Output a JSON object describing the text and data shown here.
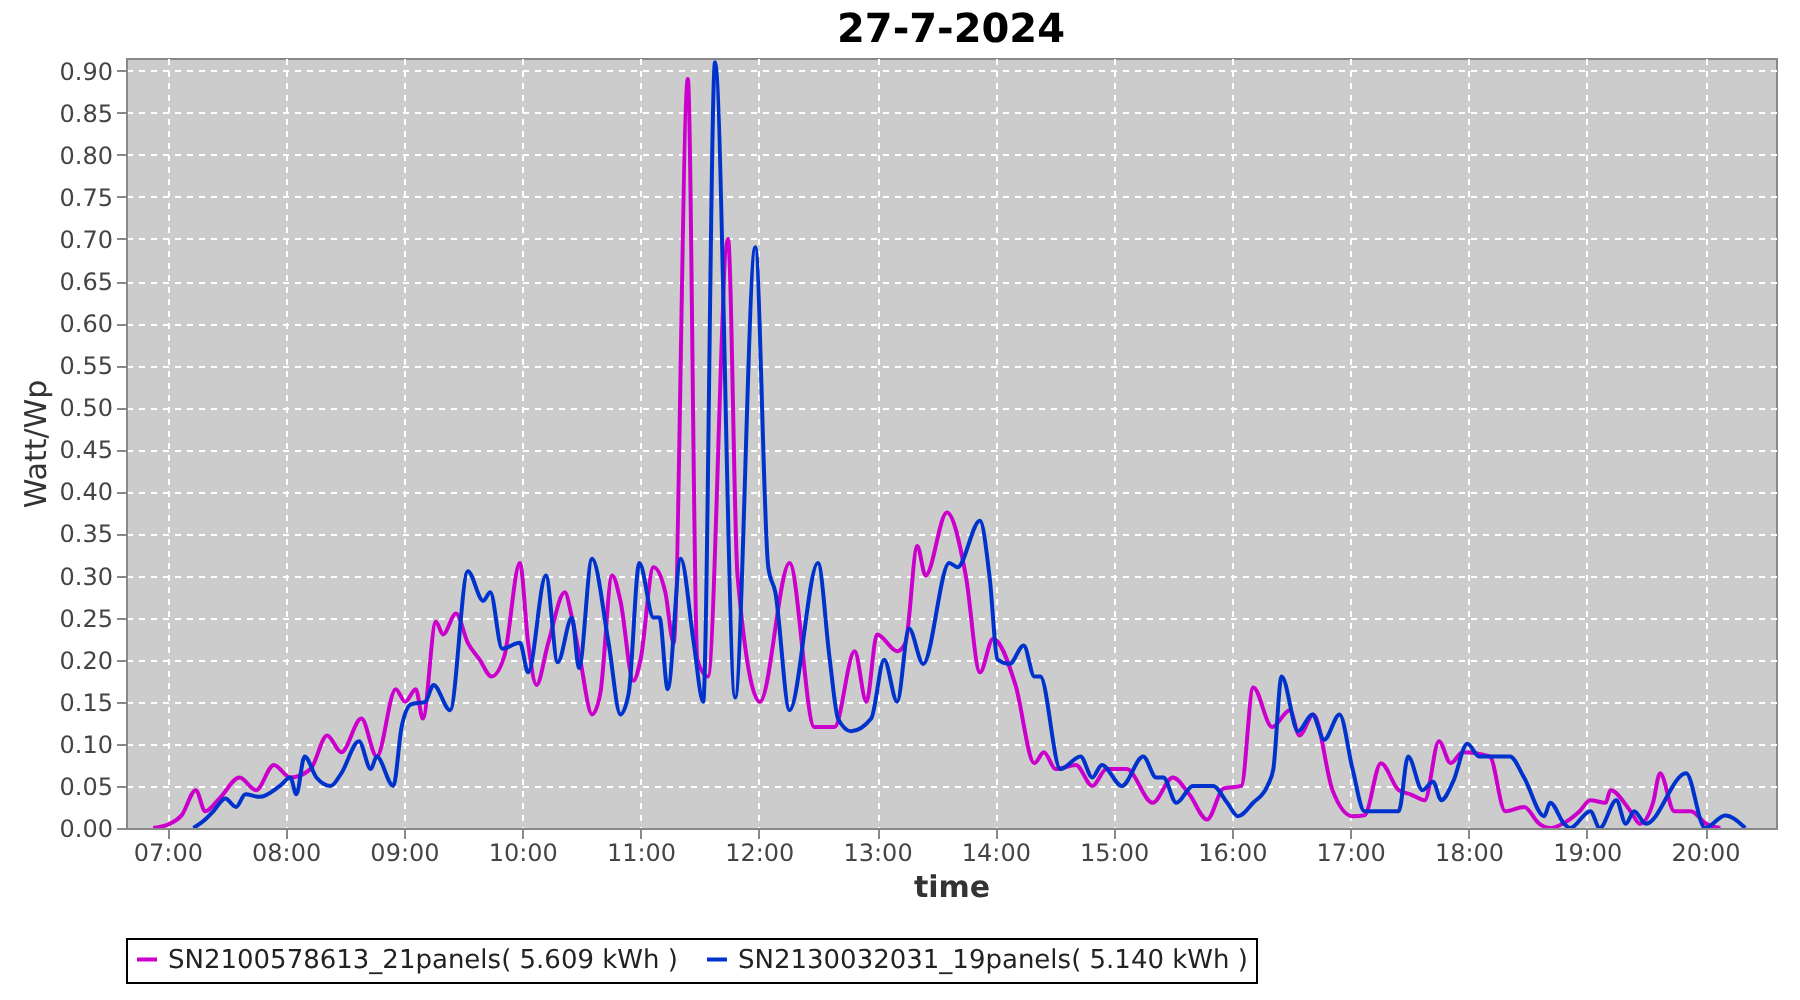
{
  "chart_data": {
    "type": "line",
    "title": "27-7-2024",
    "xlabel": "time",
    "ylabel": "Watt/Wp",
    "xlim": [
      6.65,
      20.6
    ],
    "xticks": [
      {
        "value": 7,
        "label": "07:00"
      },
      {
        "value": 8,
        "label": "08:00"
      },
      {
        "value": 9,
        "label": "09:00"
      },
      {
        "value": 10,
        "label": "10:00"
      },
      {
        "value": 11,
        "label": "11:00"
      },
      {
        "value": 12,
        "label": "12:00"
      },
      {
        "value": 13,
        "label": "13:00"
      },
      {
        "value": 14,
        "label": "14:00"
      },
      {
        "value": 15,
        "label": "15:00"
      },
      {
        "value": 16,
        "label": "16:00"
      },
      {
        "value": 17,
        "label": "17:00"
      },
      {
        "value": 18,
        "label": "18:00"
      },
      {
        "value": 19,
        "label": "19:00"
      },
      {
        "value": 20,
        "label": "20:00"
      }
    ],
    "ylim": [
      0,
      0.915
    ],
    "yticks": [
      {
        "value": 0,
        "label": "0.00"
      },
      0.05,
      {
        "value": 0.1,
        "label": "0.10"
      },
      0.15,
      {
        "value": 0.2,
        "label": "0.20"
      },
      0.25,
      {
        "value": 0.3,
        "label": "0.30"
      },
      0.35,
      {
        "value": 0.4,
        "label": "0.40"
      },
      0.45,
      {
        "value": 0.5,
        "label": "0.50"
      },
      0.55,
      {
        "value": 0.6,
        "label": "0.60"
      },
      0.65,
      {
        "value": 0.7,
        "label": "0.70"
      },
      0.75,
      {
        "value": 0.8,
        "label": "0.80"
      },
      0.85,
      {
        "value": 0.9,
        "label": "0.90"
      }
    ],
    "grid": true,
    "legend": "bottom",
    "line_style": "solid",
    "series": [
      {
        "name": "SN2100578613_21panels( 5.609 kWh )",
        "color": "#cc00cc",
        "x": [
          6.88,
          7.02,
          7.12,
          7.24,
          7.32,
          7.44,
          7.61,
          7.75,
          7.9,
          8.04,
          8.21,
          8.35,
          8.47,
          8.64,
          8.77,
          8.93,
          9.01,
          9.1,
          9.16,
          9.27,
          9.33,
          9.44,
          9.54,
          9.64,
          9.74,
          9.85,
          9.98,
          10.05,
          10.12,
          10.22,
          10.36,
          10.42,
          10.49,
          10.59,
          10.66,
          10.76,
          10.83,
          10.94,
          11.0,
          11.11,
          11.21,
          11.28,
          11.4,
          11.48,
          11.57,
          11.74,
          11.82,
          12.01,
          12.26,
          12.47,
          12.64,
          12.81,
          12.91,
          13.0,
          13.17,
          13.24,
          13.34,
          13.41,
          13.59,
          13.75,
          13.87,
          13.98,
          14.17,
          14.33,
          14.41,
          14.51,
          14.68,
          14.82,
          14.94,
          15.11,
          15.33,
          15.5,
          15.64,
          15.79,
          15.93,
          16.08,
          16.18,
          16.34,
          16.49,
          16.57,
          16.69,
          16.85,
          17.02,
          17.12,
          17.26,
          17.41,
          17.51,
          17.63,
          17.75,
          17.85,
          17.95,
          18.18,
          18.31,
          18.47,
          18.6,
          18.69,
          18.82,
          18.94,
          19.03,
          19.16,
          19.2,
          19.37,
          19.45,
          19.56,
          19.62,
          19.74,
          19.88,
          20.01,
          20.13
        ],
        "values": [
          0,
          0.005,
          0.015,
          0.045,
          0.02,
          0.035,
          0.06,
          0.045,
          0.075,
          0.06,
          0.07,
          0.11,
          0.09,
          0.13,
          0.085,
          0.165,
          0.15,
          0.165,
          0.13,
          0.245,
          0.23,
          0.255,
          0.22,
          0.2,
          0.18,
          0.205,
          0.315,
          0.22,
          0.17,
          0.22,
          0.28,
          0.25,
          0.2,
          0.135,
          0.16,
          0.3,
          0.27,
          0.175,
          0.2,
          0.31,
          0.28,
          0.22,
          0.89,
          0.2,
          0.18,
          0.7,
          0.3,
          0.15,
          0.315,
          0.12,
          0.12,
          0.21,
          0.15,
          0.23,
          0.21,
          0.22,
          0.335,
          0.3,
          0.375,
          0.3,
          0.185,
          0.225,
          0.17,
          0.077,
          0.09,
          0.07,
          0.075,
          0.05,
          0.07,
          0.07,
          0.03,
          0.06,
          0.04,
          0.01,
          0.047,
          0.05,
          0.167,
          0.12,
          0.14,
          0.11,
          0.135,
          0.045,
          0.014,
          0.015,
          0.077,
          0.045,
          0.04,
          0.033,
          0.103,
          0.077,
          0.09,
          0.085,
          0.02,
          0.025,
          0.005,
          0,
          0.007,
          0.02,
          0.033,
          0.03,
          0.045,
          0.02,
          0.005,
          0.03,
          0.065,
          0.02,
          0.02,
          0.005,
          0
        ]
      },
      {
        "name": "SN2130032031_19panels( 5.140 kWh )",
        "color": "#0033cc",
        "x": [
          7.22,
          7.32,
          7.39,
          7.49,
          7.58,
          7.66,
          7.78,
          7.95,
          8.04,
          8.09,
          8.16,
          8.26,
          8.38,
          8.47,
          8.62,
          8.72,
          8.77,
          8.91,
          8.98,
          9.06,
          9.18,
          9.25,
          9.39,
          9.54,
          9.67,
          9.73,
          9.83,
          9.98,
          10.05,
          10.2,
          10.3,
          10.42,
          10.48,
          10.59,
          10.73,
          10.83,
          10.9,
          10.99,
          11.11,
          11.16,
          11.23,
          11.34,
          11.45,
          11.53,
          11.63,
          11.8,
          11.97,
          12.08,
          12.14,
          12.26,
          12.5,
          12.6,
          12.67,
          12.78,
          12.95,
          13.06,
          13.17,
          13.27,
          13.39,
          13.61,
          13.68,
          13.87,
          13.95,
          14.02,
          14.12,
          14.24,
          14.33,
          14.38,
          14.55,
          14.72,
          14.82,
          14.9,
          15.07,
          15.25,
          15.36,
          15.42,
          15.53,
          15.67,
          15.84,
          15.96,
          16.05,
          16.18,
          16.3,
          16.35,
          16.42,
          16.56,
          16.68,
          16.78,
          16.91,
          17.02,
          17.12,
          17.41,
          17.49,
          17.61,
          17.7,
          17.77,
          17.87,
          17.99,
          18.09,
          18.35,
          18.47,
          18.64,
          18.69,
          18.81,
          18.86,
          19.03,
          19.11,
          19.25,
          19.33,
          19.4,
          19.5,
          19.84,
          20.0,
          20.17,
          20.34
        ],
        "values": [
          0,
          0.01,
          0.02,
          0.035,
          0.025,
          0.04,
          0.037,
          0.05,
          0.06,
          0.04,
          0.085,
          0.06,
          0.05,
          0.065,
          0.103,
          0.07,
          0.085,
          0.05,
          0.12,
          0.147,
          0.15,
          0.17,
          0.14,
          0.305,
          0.27,
          0.28,
          0.213,
          0.22,
          0.185,
          0.3,
          0.197,
          0.25,
          0.19,
          0.32,
          0.22,
          0.135,
          0.16,
          0.315,
          0.25,
          0.25,
          0.165,
          0.32,
          0.22,
          0.15,
          0.91,
          0.155,
          0.69,
          0.31,
          0.28,
          0.14,
          0.315,
          0.2,
          0.13,
          0.115,
          0.13,
          0.2,
          0.15,
          0.237,
          0.195,
          0.315,
          0.31,
          0.365,
          0.3,
          0.2,
          0.195,
          0.217,
          0.18,
          0.18,
          0.07,
          0.085,
          0.06,
          0.075,
          0.05,
          0.085,
          0.06,
          0.06,
          0.03,
          0.05,
          0.05,
          0.03,
          0.014,
          0.03,
          0.05,
          0.07,
          0.18,
          0.115,
          0.135,
          0.105,
          0.135,
          0.07,
          0.02,
          0.02,
          0.085,
          0.045,
          0.055,
          0.033,
          0.055,
          0.1,
          0.085,
          0.085,
          0.06,
          0.014,
          0.03,
          0.005,
          0,
          0.02,
          0,
          0.033,
          0.005,
          0.02,
          0.005,
          0.065,
          0,
          0.015,
          0
        ]
      }
    ]
  }
}
